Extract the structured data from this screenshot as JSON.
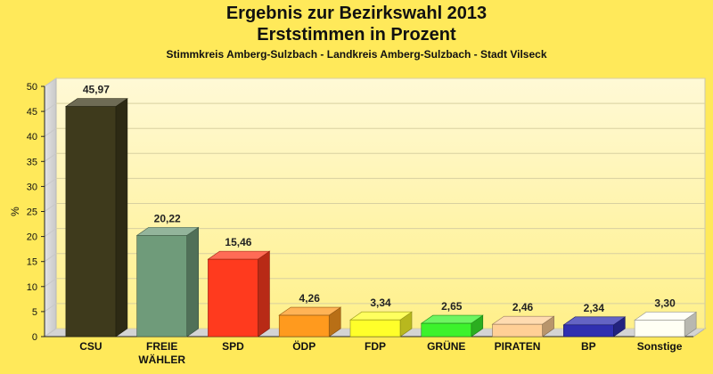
{
  "chart_data": {
    "type": "bar",
    "title": "Ergebnis zur Bezirkswahl 2013",
    "title2": "Erststimmen in Prozent",
    "subtitle": "Stimmkreis Amberg-Sulzbach - Landkreis Amberg-Sulzbach - Stadt Vilseck",
    "ylabel": "%",
    "ylim": [
      0,
      50
    ],
    "yticks": [
      0,
      5,
      10,
      15,
      20,
      25,
      30,
      35,
      40,
      45,
      50
    ],
    "categories": [
      {
        "label": "CSU",
        "label2": "",
        "value": 45.97,
        "value_label": "45,97",
        "color": "#3e3a1c"
      },
      {
        "label": "FREIE",
        "label2": "WÄHLER",
        "value": 20.22,
        "value_label": "20,22",
        "color": "#6f9b7a"
      },
      {
        "label": "SPD",
        "label2": "",
        "value": 15.46,
        "value_label": "15,46",
        "color": "#ff3a1e"
      },
      {
        "label": "ÖDP",
        "label2": "",
        "value": 4.26,
        "value_label": "4,26",
        "color": "#ff9a1e"
      },
      {
        "label": "FDP",
        "label2": "",
        "value": 3.34,
        "value_label": "3,34",
        "color": "#ffff2a"
      },
      {
        "label": "GRÜNE",
        "label2": "",
        "value": 2.65,
        "value_label": "2,65",
        "color": "#3cf22c"
      },
      {
        "label": "PIRATEN",
        "label2": "",
        "value": 2.46,
        "value_label": "2,46",
        "color": "#ffcf96"
      },
      {
        "label": "BP",
        "label2": "",
        "value": 2.34,
        "value_label": "2,34",
        "color": "#3030b0"
      },
      {
        "label": "Sonstige",
        "label2": "",
        "value": 3.3,
        "value_label": "3,30",
        "color": "#fffff4"
      }
    ],
    "grid": true,
    "legend": "none"
  }
}
